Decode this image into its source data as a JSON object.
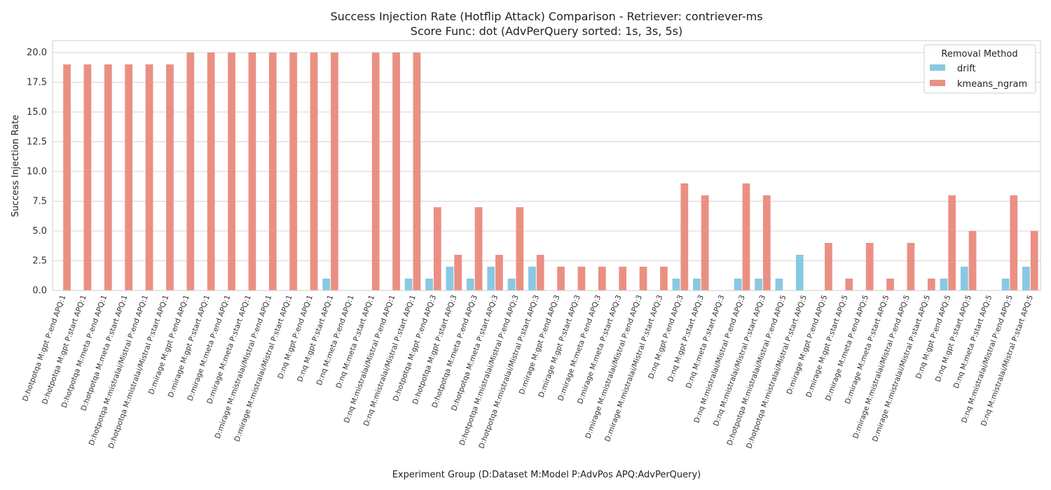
{
  "chart_data": {
    "type": "bar",
    "title_line1": "Success Injection Rate (Hotflip Attack) Comparison - Retriever: contriever-ms",
    "title_line2": "Score Func: dot (AdvPerQuery sorted: 1s, 3s, 5s)",
    "xlabel": "Experiment Group (D:Dataset M:Model P:AdvPos APQ:AdvPerQuery)",
    "ylabel": "Success Injection Rate",
    "ylim": [
      0,
      21
    ],
    "yticks": [
      "0.0",
      "2.5",
      "5.0",
      "7.5",
      "10.0",
      "12.5",
      "15.0",
      "17.5",
      "20.0"
    ],
    "grid": true,
    "legend": {
      "title": "Removal Method",
      "placement": "top-right"
    },
    "categories": [
      "D:hotpotqa M:gpt P:end APQ:1",
      "D:hotpotqa M:gpt P:start APQ:1",
      "D:hotpotqa M:meta P:end APQ:1",
      "D:hotpotqa M:meta P:start APQ:1",
      "D:hotpotqa M:mistralai/Mistral P:end APQ:1",
      "D:hotpotqa M:mistralai/Mistral P:start APQ:1",
      "D:mirage M:gpt P:end APQ:1",
      "D:mirage M:gpt P:start APQ:1",
      "D:mirage M:meta P:end APQ:1",
      "D:mirage M:meta P:start APQ:1",
      "D:mirage M:mistralai/Mistral P:end APQ:1",
      "D:mirage M:mistralai/Mistral P:start APQ:1",
      "D:nq M:gpt P:end APQ:1",
      "D:nq M:gpt P:start APQ:1",
      "D:nq M:meta P:end APQ:1",
      "D:nq M:meta P:start APQ:1",
      "D:nq M:mistralai/Mistral P:end APQ:1",
      "D:nq M:mistralai/Mistral P:start APQ:1",
      "D:hotpotqa M:gpt P:end APQ:3",
      "D:hotpotqa M:gpt P:start APQ:3",
      "D:hotpotqa M:meta P:end APQ:3",
      "D:hotpotqa M:meta P:start APQ:3",
      "D:hotpotqa M:mistralai/Mistral P:end APQ:3",
      "D:hotpotqa M:mistralai/Mistral P:start APQ:3",
      "D:mirage M:gpt P:end APQ:3",
      "D:mirage M:gpt P:start APQ:3",
      "D:mirage M:meta P:end APQ:3",
      "D:mirage M:meta P:start APQ:3",
      "D:mirage M:mistralai/Mistral P:end APQ:3",
      "D:mirage M:mistralai/Mistral P:start APQ:3",
      "D:nq M:gpt P:end APQ:3",
      "D:nq M:gpt P:start APQ:3",
      "D:nq M:meta P:start APQ:3",
      "D:nq M:mistralai/Mistral P:end APQ:3",
      "D:nq M:mistralai/Mistral P:start APQ:3",
      "D:hotpotqa M:mistralai/Mistral P:end APQ:5",
      "D:hotpotqa M:mistralai/Mistral P:start APQ:5",
      "D:mirage M:gpt P:end APQ:5",
      "D:mirage M:gpt P:start APQ:5",
      "D:mirage M:meta P:end APQ:5",
      "D:mirage M:meta P:start APQ:5",
      "D:mirage M:mistralai/Mistral P:end APQ:5",
      "D:mirage M:mistralai/Mistral P:start APQ:5",
      "D:nq M:gpt P:end APQ:5",
      "D:nq M:gpt P:start APQ:5",
      "D:nq M:meta P:start APQ:5",
      "D:nq M:mistralai/Mistral P:end APQ:5",
      "D:nq M:mistralai/Mistral P:start APQ:5"
    ],
    "series": [
      {
        "name": "drift",
        "color": "#89c8e2",
        "values": [
          0,
          0,
          0,
          0,
          0,
          0,
          0,
          0,
          0,
          0,
          0,
          0,
          0,
          1,
          0,
          0,
          0,
          1,
          1,
          2,
          1,
          2,
          1,
          2,
          0,
          0,
          0,
          0,
          0,
          0,
          1,
          1,
          0,
          1,
          1,
          1,
          3,
          0,
          0,
          0,
          0,
          0,
          0,
          1,
          2,
          0,
          1,
          2
        ]
      },
      {
        "name": "kmeans_ngram",
        "color": "#ea9083",
        "values": [
          19,
          19,
          19,
          19,
          19,
          19,
          20,
          20,
          20,
          20,
          20,
          20,
          20,
          20,
          0,
          20,
          20,
          20,
          7,
          3,
          7,
          3,
          7,
          3,
          2,
          2,
          2,
          2,
          2,
          2,
          9,
          8,
          0,
          9,
          8,
          0,
          0,
          4,
          1,
          4,
          1,
          4,
          1,
          8,
          5,
          0,
          8,
          5
        ]
      }
    ]
  }
}
